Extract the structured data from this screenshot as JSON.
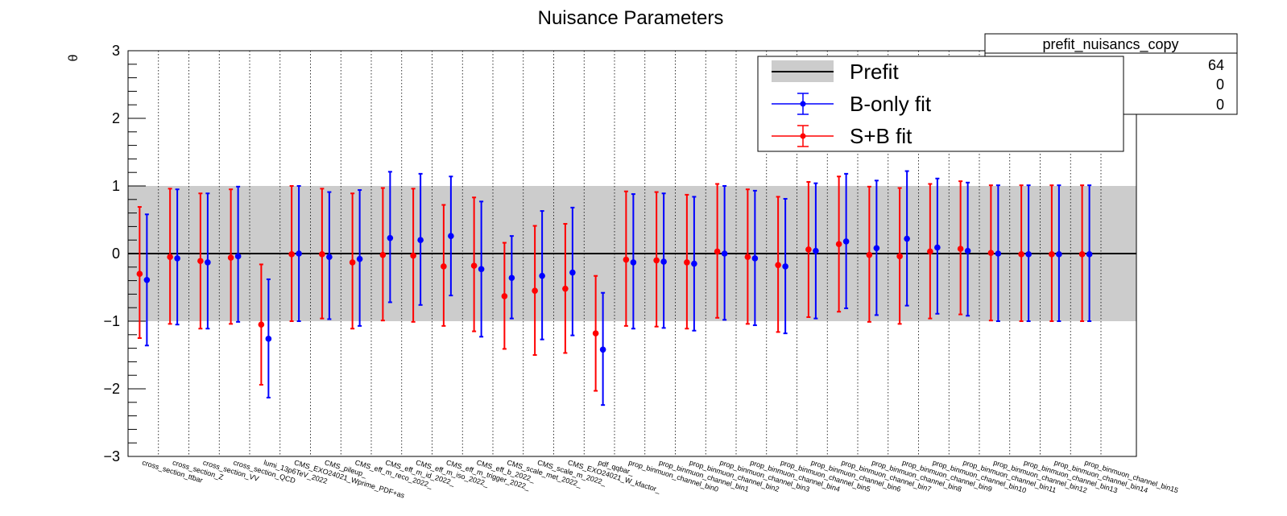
{
  "chart_data": {
    "type": "scatter",
    "title": "Nuisance Parameters",
    "ylabel": "θ",
    "xlabel": "",
    "ylim": [
      -3,
      3
    ],
    "yticks": [
      "−3",
      "−2",
      "−1",
      "0",
      "1",
      "2",
      "3"
    ],
    "prefit_band": [
      -1,
      1
    ],
    "categories": [
      "cross_section_ttbar",
      "cross_section_Z",
      "cross_section_VV",
      "cross_section_QCD",
      "lumi_13p6TeV_2022",
      "CMS_EXO24021_Wprime_PDF+as",
      "CMS_pileup_",
      "CMS_eff_m_reco_2022_",
      "CMS_eff_m_id_2022_",
      "CMS_eff_m_iso_2022_",
      "CMS_eff_m_trigger_2022_",
      "CMS_eff_b_2022_",
      "CMS_scale_met_2022_",
      "CMS_scale_m_2022_",
      "CMS_EXO24021_W_kfactor_",
      "pdf_qqbar_",
      "prop_binmuon_channel_bin0",
      "prop_binmuon_channel_bin1",
      "prop_binmuon_channel_bin2",
      "prop_binmuon_channel_bin3",
      "prop_binmuon_channel_bin4",
      "prop_binmuon_channel_bin5",
      "prop_binmuon_channel_bin6",
      "prop_binmuon_channel_bin7",
      "prop_binmuon_channel_bin8",
      "prop_binmuon_channel_bin9",
      "prop_binmuon_channel_bin10",
      "prop_binmuon_channel_bin11",
      "prop_binmuon_channel_bin12",
      "prop_binmuon_channel_bin13",
      "prop_binmuon_channel_bin14",
      "prop_binmuon_channel_bin15"
    ],
    "series": [
      {
        "name": "B-only fit",
        "color": "#0000ff",
        "values": [
          -0.39,
          -0.07,
          -0.13,
          -0.04,
          -1.26,
          0.0,
          -0.05,
          -0.08,
          0.23,
          0.2,
          0.26,
          -0.23,
          -0.36,
          -0.33,
          -0.28,
          -1.42,
          -0.13,
          -0.12,
          -0.15,
          0.0,
          -0.07,
          -0.19,
          0.04,
          0.18,
          0.08,
          0.22,
          0.09,
          0.04,
          0.0,
          -0.01,
          -0.01,
          -0.01
        ],
        "err_low": [
          0.97,
          0.98,
          0.98,
          0.97,
          0.87,
          1.0,
          0.92,
          0.99,
          0.95,
          0.96,
          0.88,
          1.0,
          0.6,
          0.94,
          0.93,
          0.82,
          0.98,
          0.98,
          0.99,
          0.98,
          0.99,
          0.99,
          1.0,
          0.99,
          0.99,
          0.99,
          0.98,
          0.96,
          1.0,
          0.99,
          0.99,
          0.99
        ],
        "err_high": [
          0.97,
          1.02,
          1.02,
          1.03,
          0.88,
          1.0,
          0.96,
          1.02,
          0.98,
          0.98,
          0.88,
          1.0,
          0.62,
          0.96,
          0.96,
          0.84,
          1.01,
          1.01,
          0.99,
          1.0,
          1.0,
          1.0,
          1.0,
          1.0,
          1.0,
          1.0,
          1.02,
          1.01,
          1.01,
          1.02,
          1.02,
          1.02
        ]
      },
      {
        "name": "S+B fit",
        "color": "#ff0000",
        "values": [
          -0.3,
          -0.05,
          -0.11,
          -0.06,
          -1.05,
          -0.01,
          -0.01,
          -0.13,
          -0.02,
          -0.03,
          -0.19,
          -0.18,
          -0.63,
          -0.55,
          -0.52,
          -1.18,
          -0.09,
          -0.1,
          -0.13,
          0.03,
          -0.05,
          -0.17,
          0.06,
          0.14,
          -0.02,
          -0.04,
          0.03,
          0.07,
          0.01,
          -0.01,
          -0.01,
          -0.01
        ],
        "err_low": [
          0.95,
          0.99,
          1.0,
          0.98,
          0.89,
          0.99,
          0.95,
          0.98,
          0.97,
          0.98,
          0.88,
          0.97,
          0.78,
          0.95,
          0.95,
          0.85,
          0.98,
          0.98,
          0.98,
          0.98,
          0.99,
          0.99,
          1.0,
          1.0,
          0.99,
          1.0,
          0.99,
          0.97,
          1.0,
          0.99,
          0.99,
          0.99
        ],
        "err_high": [
          0.99,
          1.01,
          1.0,
          1.01,
          0.89,
          1.01,
          0.97,
          1.02,
          0.99,
          0.99,
          0.91,
          1.01,
          0.79,
          0.96,
          0.96,
          0.85,
          1.01,
          1.01,
          1.0,
          1.0,
          1.0,
          1.01,
          1.0,
          1.0,
          1.01,
          1.01,
          1.0,
          1.0,
          1.0,
          1.02,
          1.02,
          1.02
        ]
      }
    ],
    "legend": {
      "placement": "top-right",
      "entries": [
        {
          "label": "Prefit",
          "color": "#000000",
          "fill": "#cccccc"
        },
        {
          "label": "B-only fit",
          "color": "#0000ff"
        },
        {
          "label": "S+B fit",
          "color": "#ff0000"
        }
      ]
    },
    "stats_box": {
      "title": "prefit_nuisancs_copy",
      "values": [
        "64",
        "0",
        "0"
      ]
    },
    "grid": {
      "x": true,
      "y": false
    }
  }
}
